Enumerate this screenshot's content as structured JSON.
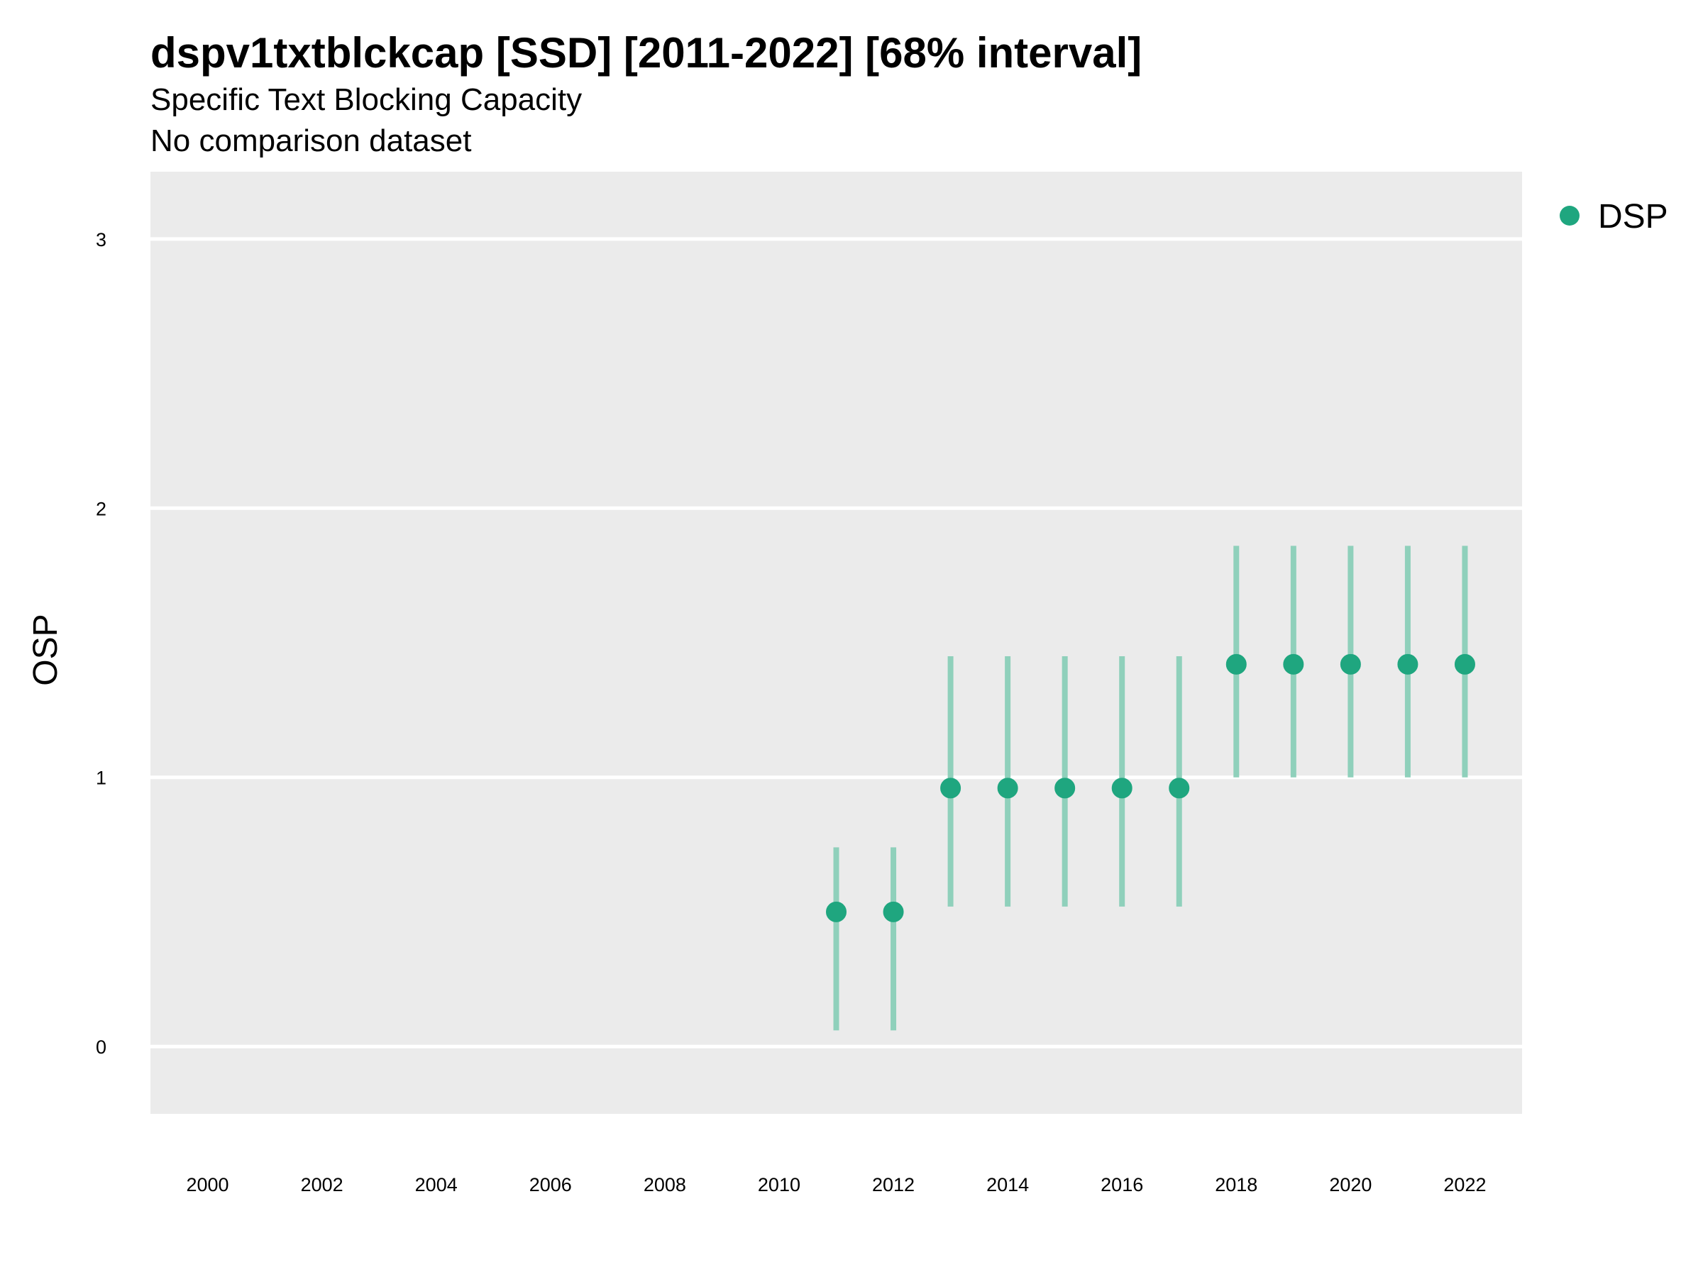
{
  "title": "dspv1txtblckcap [SSD] [2011-2022] [68% interval]",
  "subtitle_lines": [
    "Specific Text Blocking Capacity",
    "No comparison dataset"
  ],
  "colors": {
    "point": "#1fa67f",
    "interval": "#8fd0bb",
    "panel": "#ebebeb",
    "grid": "#ffffff"
  },
  "chart_data": {
    "type": "scatter",
    "title": "dspv1txtblckcap [SSD] [2011-2022] [68% interval]",
    "subtitle": "Specific Text Blocking Capacity / No comparison dataset",
    "xlabel": "",
    "ylabel": "OSP",
    "xlim": [
      1999,
      2023
    ],
    "ylim": [
      -0.25,
      3.25
    ],
    "x_ticks": [
      "2000",
      "2002",
      "2004",
      "2006",
      "2008",
      "2010",
      "2012",
      "2014",
      "2016",
      "2018",
      "2020",
      "2022"
    ],
    "y_ticks": [
      "0",
      "1",
      "2",
      "3"
    ],
    "grid": true,
    "legend_position": "right",
    "series": [
      {
        "name": "DSP",
        "points": [
          {
            "x": 2011,
            "y": 0.5,
            "low": 0.06,
            "high": 0.74
          },
          {
            "x": 2012,
            "y": 0.5,
            "low": 0.06,
            "high": 0.74
          },
          {
            "x": 2013,
            "y": 0.96,
            "low": 0.52,
            "high": 1.45
          },
          {
            "x": 2014,
            "y": 0.96,
            "low": 0.52,
            "high": 1.45
          },
          {
            "x": 2015,
            "y": 0.96,
            "low": 0.52,
            "high": 1.45
          },
          {
            "x": 2016,
            "y": 0.96,
            "low": 0.52,
            "high": 1.45
          },
          {
            "x": 2017,
            "y": 0.96,
            "low": 0.52,
            "high": 1.45
          },
          {
            "x": 2018,
            "y": 1.42,
            "low": 1.0,
            "high": 1.86
          },
          {
            "x": 2019,
            "y": 1.42,
            "low": 1.0,
            "high": 1.86
          },
          {
            "x": 2020,
            "y": 1.42,
            "low": 1.0,
            "high": 1.86
          },
          {
            "x": 2021,
            "y": 1.42,
            "low": 1.0,
            "high": 1.86
          },
          {
            "x": 2022,
            "y": 1.42,
            "low": 1.0,
            "high": 1.86
          }
        ]
      }
    ]
  }
}
